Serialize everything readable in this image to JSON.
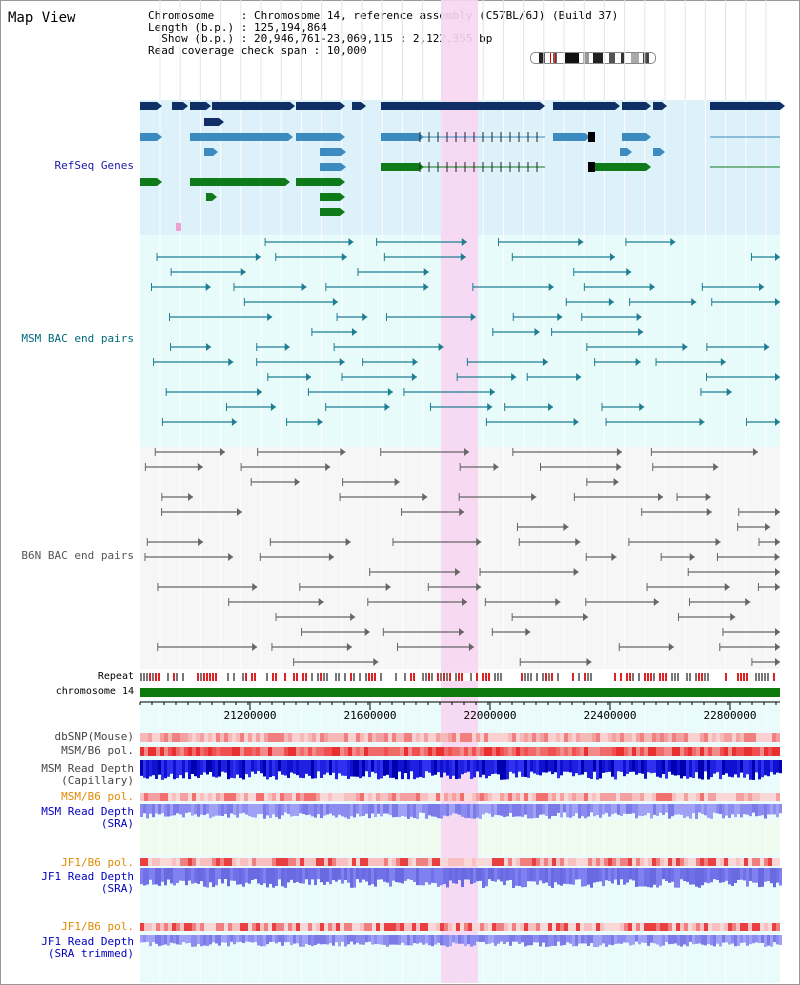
{
  "title": "Map View",
  "info": {
    "chromosome_label": "Chromosome",
    "chromosome_value": "Chromosome 14, reference assembly (C57BL/6J) (Build 37)",
    "length_label": "Length (b.p.)",
    "length_value": "125,194,864",
    "show_label": "Show (b.p.)",
    "show_value": "20,946,761-23,069,115 : 2,122,355 bp",
    "span_label": "Read coverage check span",
    "span_value": "10,000"
  },
  "tracks": {
    "refseq": "RefSeq Genes",
    "msm_bac": "MSM BAC end pairs",
    "b6n_bac": "B6N BAC end pairs",
    "repeat": "Repeat",
    "chromosome": "chromosome 14",
    "dbsnp": "dbSNP(Mouse)",
    "msm_b6_pol_1": "MSM/B6 pol.",
    "msm_depth_cap_1": "MSM Read Depth",
    "msm_depth_cap_2": "(Capillary)",
    "msm_b6_pol_2": "MSM/B6 pol.",
    "msm_depth_sra_1": "MSM Read Depth",
    "msm_depth_sra_2": "(SRA)",
    "jf1_pol_1": "JF1/B6 pol.",
    "jf1_depth_1": "JF1 Read Depth",
    "jf1_depth_2": "(SRA)",
    "jf1_pol_2": "JF1/B6 pol.",
    "jf1_trim_1": "JF1 Read Depth",
    "jf1_trim_2": "(SRA trimmed)"
  },
  "axis": {
    "ticks": [
      "21200000",
      "21600000",
      "22000000",
      "22400000",
      "22800000"
    ]
  },
  "colors": {
    "refseq_label": "#1a1aa6",
    "bac_msm_label": "#006b7a",
    "bac_b6n_label": "#555555",
    "orange_label": "#e08a00",
    "blue_label": "#0000c0",
    "highlight": "#f7d6f2",
    "gene_dark": "#0f2f66",
    "gene_mid": "#3c8bc0",
    "gene_green": "#0f7a1a",
    "chrom_bar": "#0d7a0d"
  }
}
